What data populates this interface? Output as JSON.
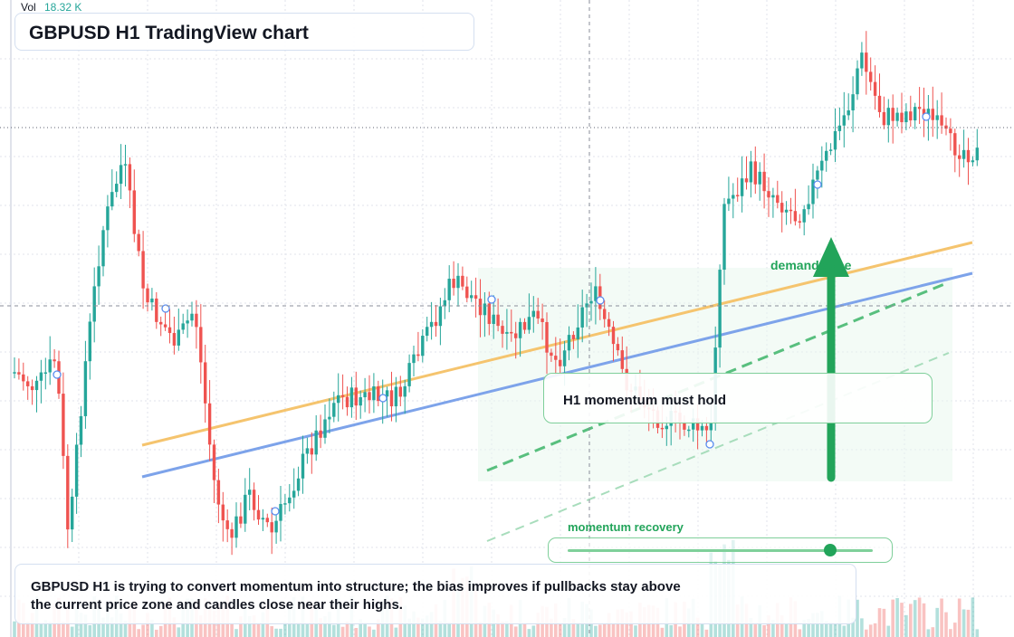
{
  "header": {
    "vol_label": "Vol",
    "vol_value": "18.32 K",
    "title": "GBPUSD H1 TradingView chart"
  },
  "annotations": {
    "callout": "H1 momentum must hold",
    "demand_label": "demand zone",
    "momentum_label": "momentum recovery",
    "momentum_level": 0.86,
    "summary": "GBPUSD H1 is trying to convert momentum into structure; the bias improves if pullbacks stay above the current price zone and candles close near their highs."
  },
  "colors": {
    "bull": "#26a69a",
    "bear": "#ef5350",
    "accent_green": "#22a45a",
    "trend_orange": "#f5c46e",
    "trend_blue": "#7da3ea"
  },
  "icons": {
    "arrow": "up-arrow-icon"
  }
}
